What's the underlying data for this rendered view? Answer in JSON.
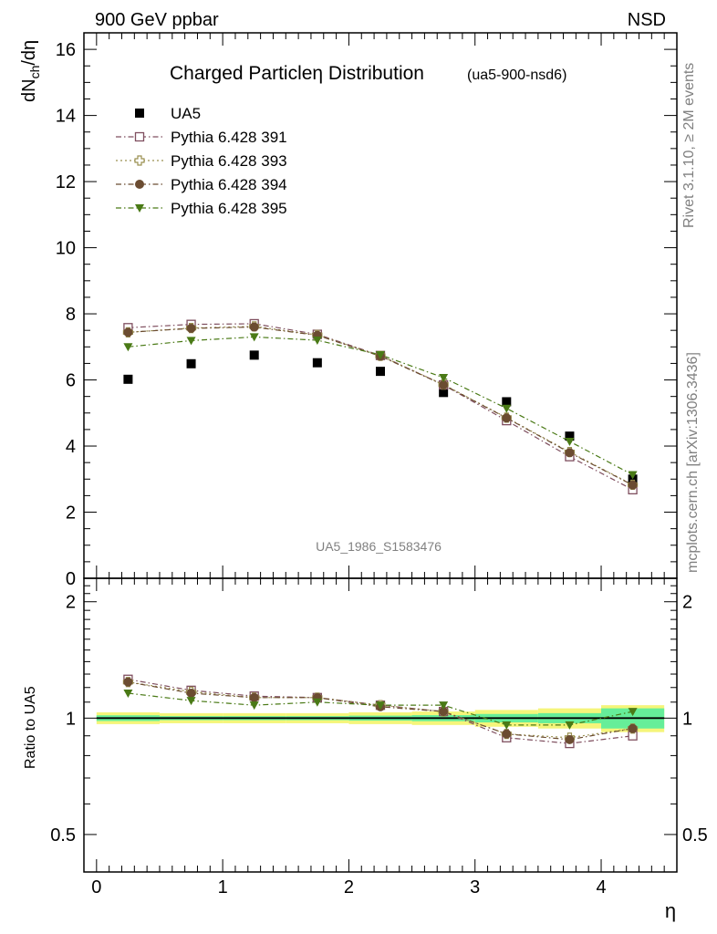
{
  "header": {
    "left": "900 GeV ppbar",
    "right": "NSD"
  },
  "side_labels": {
    "rivet": "Rivet 3.1.10, ≥ 2M events",
    "mcplots": "mcplots.cern.ch [arXiv:1306.3436]"
  },
  "chart_data": [
    {
      "type": "scatter",
      "title_main": "Charged Particleη Distribution",
      "title_tag": "(ua5-900-nsd6)",
      "watermark": "UA5_1986_S1583476",
      "ylabel": "dN",
      "ylabel_sub": "ch",
      "ylabel_tail": "/dη",
      "xlim": [
        -0.1,
        4.6
      ],
      "ylim": [
        0,
        16.5
      ],
      "yticks": [
        0,
        2,
        4,
        6,
        8,
        10,
        12,
        14,
        16
      ],
      "ytick_labels": [
        "0",
        "2",
        "4",
        "6",
        "8",
        "10",
        "12",
        "14",
        "16"
      ],
      "legend_position": "top-left",
      "x": [
        0.25,
        0.75,
        1.25,
        1.75,
        2.25,
        2.75,
        3.25,
        3.75,
        4.25
      ],
      "series": [
        {
          "name": "UA5",
          "color": "#000000",
          "marker": "square-filled",
          "line": "none",
          "values": [
            6.02,
            6.49,
            6.75,
            6.52,
            6.26,
            5.62,
            5.34,
            4.3,
            3.0
          ]
        },
        {
          "name": "Pythia 6.428 391",
          "color": "#7f4f5f",
          "marker": "square-open",
          "line": "dashdot",
          "values": [
            7.58,
            7.68,
            7.7,
            7.38,
            6.74,
            5.85,
            4.77,
            3.68,
            2.68
          ]
        },
        {
          "name": "Pythia 6.428 393",
          "color": "#9a9050",
          "marker": "cross-open",
          "line": "dot",
          "values": [
            7.44,
            7.57,
            7.62,
            7.36,
            6.73,
            5.86,
            4.86,
            3.82,
            2.83
          ]
        },
        {
          "name": "Pythia 6.428 394",
          "color": "#6b4c31",
          "marker": "circle-filled",
          "line": "dashdot",
          "values": [
            7.44,
            7.56,
            7.6,
            7.35,
            6.72,
            5.85,
            4.85,
            3.8,
            2.82
          ]
        },
        {
          "name": "Pythia 6.428 395",
          "color": "#4a7a16",
          "marker": "triangle-down-filled",
          "line": "dashdot",
          "values": [
            7.0,
            7.19,
            7.3,
            7.2,
            6.76,
            6.07,
            5.14,
            4.14,
            3.13
          ]
        }
      ]
    },
    {
      "type": "scatter",
      "ylabel": "Ratio to UA5",
      "xlabel": "η",
      "scale": "log",
      "xlim": [
        -0.1,
        4.6
      ],
      "ylim": [
        0.4,
        2.3
      ],
      "xticks": [
        0,
        1,
        2,
        3,
        4
      ],
      "xtick_labels": [
        "0",
        "1",
        "2",
        "3",
        "4"
      ],
      "yticks": [
        0.5,
        1,
        2
      ],
      "ytick_labels": [
        "0.5",
        "1",
        "2"
      ],
      "x": [
        0.25,
        0.75,
        1.25,
        1.75,
        2.25,
        2.75,
        3.25,
        3.75,
        4.25
      ],
      "bands": {
        "edges": [
          0,
          0.5,
          1,
          1.5,
          2,
          2.5,
          3,
          3.5,
          4,
          4.5
        ],
        "stat_color": "#66ee99",
        "syst_color": "#f5f57a",
        "stat_halfwidth": [
          0.017,
          0.012,
          0.012,
          0.012,
          0.015,
          0.018,
          0.025,
          0.03,
          0.06
        ],
        "syst_halfwidth": [
          0.035,
          0.03,
          0.03,
          0.03,
          0.035,
          0.04,
          0.05,
          0.06,
          0.08
        ]
      },
      "series": [
        {
          "name": "Pythia 6.428 391",
          "color": "#7f4f5f",
          "marker": "square-open",
          "line": "dashdot",
          "values": [
            1.26,
            1.18,
            1.14,
            1.13,
            1.08,
            1.04,
            0.89,
            0.86,
            0.9
          ]
        },
        {
          "name": "Pythia 6.428 393",
          "color": "#9a9050",
          "marker": "cross-open",
          "line": "dot",
          "values": [
            1.24,
            1.17,
            1.13,
            1.13,
            1.08,
            1.04,
            0.91,
            0.89,
            0.94
          ]
        },
        {
          "name": "Pythia 6.428 394",
          "color": "#6b4c31",
          "marker": "circle-filled",
          "line": "dashdot",
          "values": [
            1.24,
            1.16,
            1.13,
            1.13,
            1.07,
            1.04,
            0.91,
            0.88,
            0.94
          ]
        },
        {
          "name": "Pythia 6.428 395",
          "color": "#4a7a16",
          "marker": "triangle-down-filled",
          "line": "dashdot",
          "values": [
            1.16,
            1.11,
            1.08,
            1.1,
            1.08,
            1.08,
            0.96,
            0.96,
            1.04
          ]
        }
      ]
    }
  ]
}
